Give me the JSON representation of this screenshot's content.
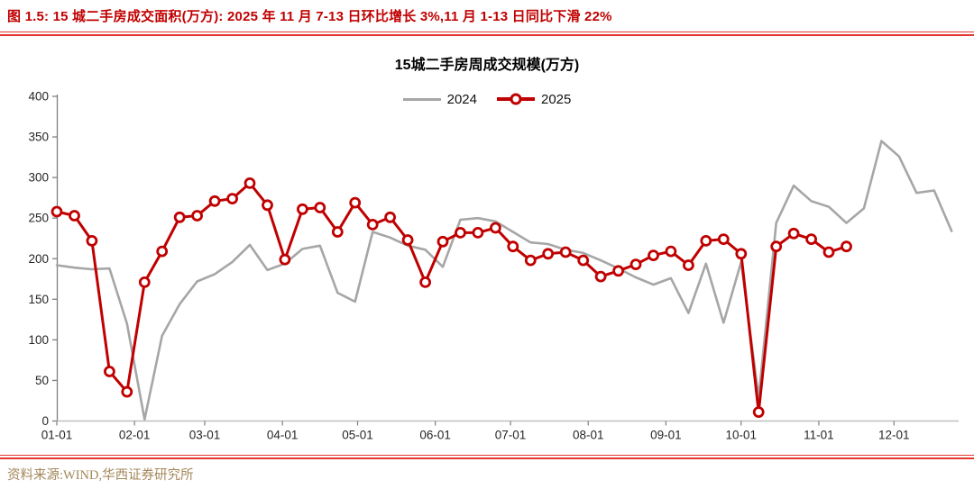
{
  "header": {
    "caption": "图 1.5:  15 城二手房成交面积(万方): 2025 年 11 月 7-13 日环比增长 3%,11 月 1-13 日同比下滑 22%"
  },
  "footer": {
    "source": "资料来源:WIND,华西证券研究所"
  },
  "colors": {
    "accent_red": "#C00000",
    "series_gray": "#A6A6A6",
    "rule_red": "#E4372E",
    "footer_text": "#A3875A",
    "axis_line": "#BFBFBF",
    "yaxis_line": "#7F7F7F",
    "tick_text": "#262626"
  },
  "chart_data": {
    "type": "line",
    "title": "15城二手房周成交规模(万方)",
    "xlabel": "",
    "ylabel": "",
    "ylim": [
      0,
      400
    ],
    "ytick_step": 50,
    "grid": false,
    "legend_position": "top-center",
    "x_tick_labels": [
      "01-01",
      "02-01",
      "03-01",
      "04-01",
      "05-01",
      "06-01",
      "07-01",
      "08-01",
      "09-01",
      "10-01",
      "11-01",
      "12-01"
    ],
    "x_unit": "week",
    "series": [
      {
        "name": "2024",
        "color": "#A6A6A6",
        "marker": "none",
        "values": [
          192,
          189,
          187,
          188,
          120,
          2,
          105,
          144,
          172,
          181,
          196,
          217,
          186,
          194,
          212,
          216,
          158,
          147,
          233,
          226,
          216,
          211,
          190,
          248,
          250,
          246,
          233,
          220,
          218,
          211,
          207,
          198,
          188,
          177,
          168,
          176,
          133,
          194,
          121,
          196,
          29,
          244,
          290,
          271,
          264,
          244,
          262,
          345,
          326,
          281,
          284,
          234
        ]
      },
      {
        "name": "2025",
        "color": "#C00000",
        "marker": "circle",
        "values": [
          258,
          253,
          222,
          61,
          36,
          171,
          209,
          251,
          253,
          271,
          274,
          293,
          266,
          199,
          261,
          263,
          233,
          269,
          242,
          251,
          223,
          171,
          221,
          232,
          232,
          238,
          215,
          198,
          206,
          208,
          198,
          178,
          185,
          193,
          204,
          209,
          192,
          222,
          224,
          206,
          11,
          215,
          231,
          224,
          208,
          215
        ]
      }
    ]
  }
}
